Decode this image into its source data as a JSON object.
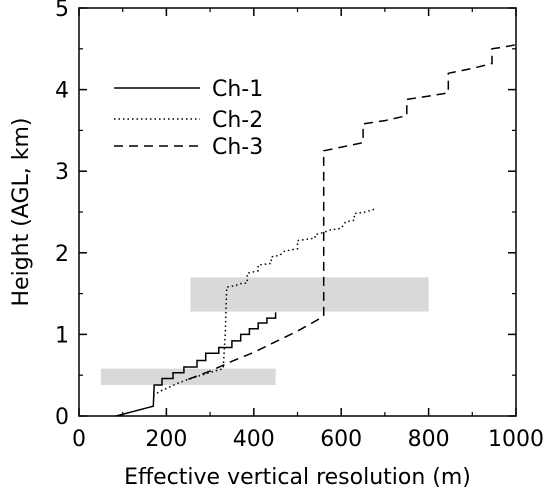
{
  "chart_data": {
    "type": "line",
    "title": "",
    "xlabel": "Effective vertical resolution (m)",
    "ylabel": "Height (AGL, km)",
    "xlim": [
      0,
      1000
    ],
    "ylim": [
      0,
      5
    ],
    "xticks": [
      0,
      200,
      400,
      600,
      800,
      1000
    ],
    "yticks": [
      0,
      1,
      2,
      3,
      4,
      5
    ],
    "grid": false,
    "legend_position": "top-left",
    "shaded_regions": [
      {
        "x": [
          50,
          450
        ],
        "y": [
          0.38,
          0.58
        ],
        "color": "#d9d9d9"
      },
      {
        "x": [
          255,
          800
        ],
        "y": [
          1.28,
          1.7
        ],
        "color": "#d9d9d9"
      }
    ],
    "series": [
      {
        "name": "Ch-1",
        "style": "solid",
        "points": [
          [
            85,
            0.0
          ],
          [
            170,
            0.12
          ],
          [
            172,
            0.38
          ],
          [
            190,
            0.38
          ],
          [
            190,
            0.46
          ],
          [
            215,
            0.46
          ],
          [
            215,
            0.53
          ],
          [
            240,
            0.53
          ],
          [
            240,
            0.6
          ],
          [
            270,
            0.6
          ],
          [
            270,
            0.68
          ],
          [
            290,
            0.68
          ],
          [
            290,
            0.77
          ],
          [
            320,
            0.77
          ],
          [
            320,
            0.84
          ],
          [
            350,
            0.84
          ],
          [
            350,
            0.92
          ],
          [
            370,
            0.92
          ],
          [
            370,
            1.0
          ],
          [
            390,
            1.0
          ],
          [
            390,
            1.07
          ],
          [
            410,
            1.07
          ],
          [
            410,
            1.14
          ],
          [
            430,
            1.14
          ],
          [
            430,
            1.2
          ],
          [
            450,
            1.2
          ],
          [
            450,
            1.27
          ]
        ]
      },
      {
        "name": "Ch-2",
        "style": "dotted",
        "points": [
          [
            170,
            0.25
          ],
          [
            185,
            0.3
          ],
          [
            205,
            0.35
          ],
          [
            225,
            0.4
          ],
          [
            250,
            0.45
          ],
          [
            280,
            0.5
          ],
          [
            310,
            0.55
          ],
          [
            330,
            0.58
          ],
          [
            335,
            1.05
          ],
          [
            338,
            1.58
          ],
          [
            360,
            1.6
          ],
          [
            365,
            1.62
          ],
          [
            385,
            1.63
          ],
          [
            385,
            1.75
          ],
          [
            410,
            1.78
          ],
          [
            410,
            1.85
          ],
          [
            440,
            1.87
          ],
          [
            440,
            1.95
          ],
          [
            460,
            1.97
          ],
          [
            470,
            2.02
          ],
          [
            500,
            2.05
          ],
          [
            500,
            2.15
          ],
          [
            540,
            2.18
          ],
          [
            540,
            2.22
          ],
          [
            560,
            2.25
          ],
          [
            575,
            2.28
          ],
          [
            600,
            2.3
          ],
          [
            610,
            2.38
          ],
          [
            630,
            2.4
          ],
          [
            630,
            2.48
          ],
          [
            655,
            2.5
          ],
          [
            680,
            2.54
          ]
        ]
      },
      {
        "name": "Ch-3",
        "style": "dashed",
        "points": [
          [
            250,
            0.45
          ],
          [
            300,
            0.55
          ],
          [
            350,
            0.67
          ],
          [
            400,
            0.78
          ],
          [
            450,
            0.91
          ],
          [
            500,
            1.04
          ],
          [
            560,
            1.22
          ],
          [
            560,
            3.25
          ],
          [
            650,
            3.35
          ],
          [
            650,
            3.58
          ],
          [
            700,
            3.62
          ],
          [
            750,
            3.68
          ],
          [
            750,
            3.88
          ],
          [
            800,
            3.92
          ],
          [
            845,
            3.96
          ],
          [
            845,
            4.2
          ],
          [
            900,
            4.26
          ],
          [
            945,
            4.32
          ],
          [
            945,
            4.5
          ],
          [
            970,
            4.52
          ],
          [
            1000,
            4.55
          ]
        ]
      }
    ]
  }
}
